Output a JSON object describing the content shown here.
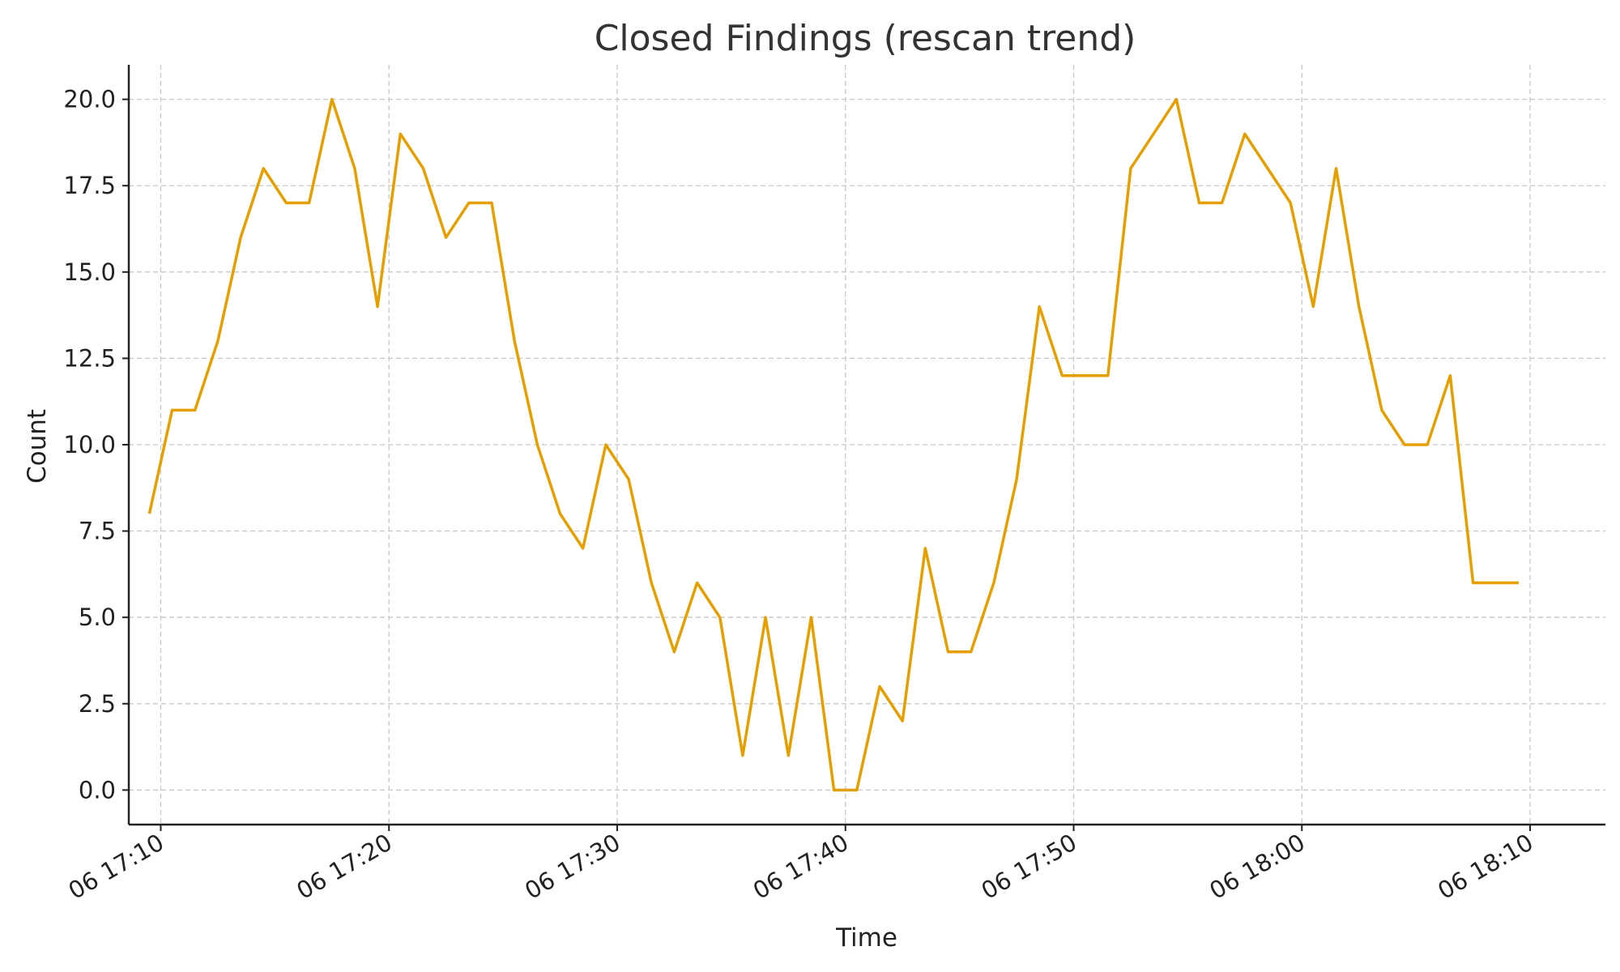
{
  "chart_data": {
    "type": "line",
    "title": "Closed Findings (rescan trend)",
    "xlabel": "Time",
    "ylabel": "Count",
    "x_start": "06 17:09:30",
    "x_step_minutes": 1,
    "x_ticks": [
      "06 17:10",
      "06 17:20",
      "06 17:30",
      "06 17:40",
      "06 17:50",
      "06 18:00",
      "06 18:10"
    ],
    "y_ticks": [
      "0.0",
      "2.5",
      "5.0",
      "7.5",
      "10.0",
      "12.5",
      "15.0",
      "17.5",
      "20.0"
    ],
    "ylim": [
      -1,
      21
    ],
    "grid": true,
    "line_color": "#e69f00",
    "series": [
      {
        "values": [
          8,
          11,
          11,
          13,
          16,
          18,
          17,
          17,
          20,
          18,
          14,
          19,
          18,
          16,
          17,
          17,
          13,
          10,
          8,
          7,
          10,
          9,
          6,
          4,
          6,
          5,
          1,
          5,
          1,
          5,
          0,
          0,
          3,
          2,
          7,
          4,
          4,
          6,
          9,
          14,
          12,
          12,
          12,
          18,
          19,
          20,
          17,
          17,
          19,
          18,
          17,
          14,
          18,
          14,
          11,
          10,
          10,
          12,
          6,
          6,
          6
        ]
      }
    ]
  }
}
